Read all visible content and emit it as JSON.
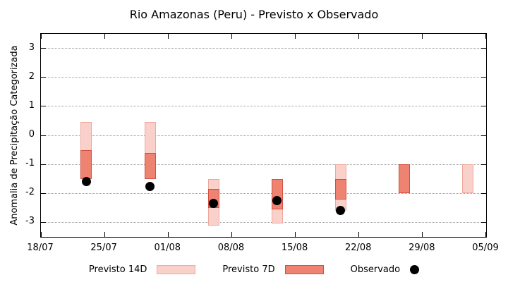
{
  "title": "Rio Amazonas (Peru) - Previsto x Observado",
  "chart_data": {
    "type": "bar",
    "subtype": "range-bars-with-scatter-overlay",
    "title": "Rio Amazonas (Peru) - Previsto x Observado",
    "xlabel": "",
    "ylabel": "Anomalia de Precipitação Categorizada",
    "ylim": [
      -3.5,
      3.5
    ],
    "yticks": [
      3,
      2,
      1,
      0,
      -1,
      -2,
      -3
    ],
    "xlim_days": [
      0,
      49
    ],
    "xticks": [
      {
        "label": "18/07",
        "day": 0
      },
      {
        "label": "25/07",
        "day": 7
      },
      {
        "label": "01/08",
        "day": 14
      },
      {
        "label": "08/08",
        "day": 21
      },
      {
        "label": "15/08",
        "day": 28
      },
      {
        "label": "22/08",
        "day": 35
      },
      {
        "label": "29/08",
        "day": 42
      },
      {
        "label": "05/09",
        "day": 49
      }
    ],
    "grid": "horizontal-dotted",
    "legend_position": "bottom",
    "series": [
      {
        "name": "Previsto 14D",
        "type": "range-bar",
        "fill": "#f9d0ca",
        "border": "#efa89d",
        "points": [
          {
            "date": "23/07",
            "day": 5,
            "low": -1.5,
            "high": 0.45
          },
          {
            "date": "30/07",
            "day": 12,
            "low": -1.5,
            "high": 0.45
          },
          {
            "date": "06/08",
            "day": 19,
            "low": -3.1,
            "high": -1.5
          },
          {
            "date": "13/08",
            "day": 26,
            "low": -3.05,
            "high": -1.5
          },
          {
            "date": "20/08",
            "day": 33,
            "low": -2.6,
            "high": -1.0
          },
          {
            "date": "03/09",
            "day": 47,
            "low": -2.0,
            "high": -1.0
          }
        ]
      },
      {
        "name": "Previsto 7D",
        "type": "range-bar",
        "fill": "#ee8372",
        "border": "#d34f3e",
        "points": [
          {
            "date": "23/07",
            "day": 5,
            "low": -1.5,
            "high": -0.5
          },
          {
            "date": "30/07",
            "day": 12,
            "low": -1.5,
            "high": -0.6
          },
          {
            "date": "06/08",
            "day": 19,
            "low": -2.5,
            "high": -1.85
          },
          {
            "date": "13/08",
            "day": 26,
            "low": -2.55,
            "high": -1.5
          },
          {
            "date": "20/08",
            "day": 33,
            "low": -2.2,
            "high": -1.5
          },
          {
            "date": "27/08",
            "day": 40,
            "low": -2.0,
            "high": -1.0
          }
        ]
      },
      {
        "name": "Observado",
        "type": "scatter",
        "fill": "#000000",
        "points": [
          {
            "date": "23/07",
            "day": 5,
            "value": -1.6
          },
          {
            "date": "30/07",
            "day": 12,
            "value": -1.75
          },
          {
            "date": "06/08",
            "day": 19,
            "value": -2.35
          },
          {
            "date": "13/08",
            "day": 26,
            "value": -2.25
          },
          {
            "date": "20/08",
            "day": 33,
            "value": -2.6
          }
        ]
      }
    ]
  },
  "legend": {
    "items": [
      {
        "label": "Previsto 14D",
        "swatch": "bar",
        "fill": "#f9d0ca",
        "border": "#efa89d"
      },
      {
        "label": "Previsto 7D",
        "swatch": "bar",
        "fill": "#ee8372",
        "border": "#d34f3e"
      },
      {
        "label": "Observado",
        "swatch": "dot",
        "fill": "#000000"
      }
    ]
  }
}
